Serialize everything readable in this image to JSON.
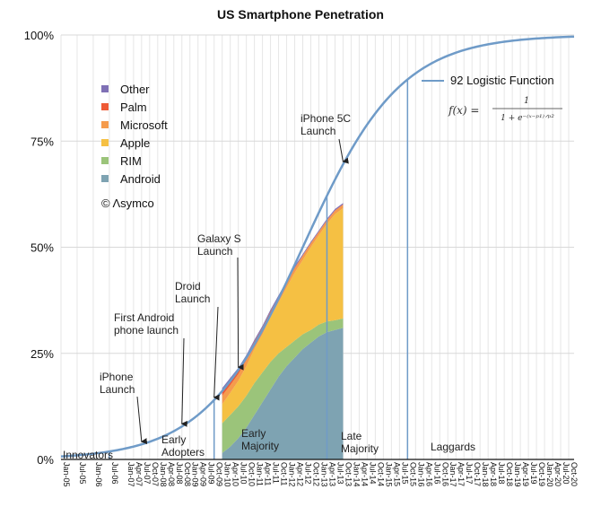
{
  "chart_data": {
    "type": "area",
    "title": "US Smartphone Penetration",
    "xlabel": "",
    "ylabel": "",
    "ylim": [
      0,
      100
    ],
    "y_ticks": [
      "0%",
      "25%",
      "50%",
      "75%",
      "100%"
    ],
    "x_ticks": [
      "Jan-05",
      "Jul-05",
      "Jan-06",
      "Jul-06",
      "Jan-07",
      "Apr-07",
      "Jul-07",
      "Oct-07",
      "Jan-08",
      "Apr-08",
      "Jul-08",
      "Oct-08",
      "Jan-09",
      "Apr-09",
      "Jul-09",
      "Oct-09",
      "Jan-10",
      "Apr-10",
      "Jul-10",
      "Oct-10",
      "Jan-11",
      "Apr-11",
      "Jul-11",
      "Oct-11",
      "Jan-12",
      "Apr-12",
      "Jul-12",
      "Oct-12",
      "Jan-13",
      "Apr-13",
      "Jul-13",
      "Oct-13",
      "Jan-14",
      "Apr-14",
      "Jul-14",
      "Oct-14",
      "Jan-15",
      "Apr-15",
      "Jul-15",
      "Oct-15",
      "Jan-16",
      "Apr-16",
      "Jul-16",
      "Oct-16",
      "Jan-17",
      "Apr-17",
      "Jul-17",
      "Oct-17",
      "Jan-18",
      "Apr-18",
      "Jul-18",
      "Oct-18",
      "Jan-19",
      "Apr-19",
      "Jul-19",
      "Oct-19",
      "Jan-20",
      "Apr-20",
      "Jul-20",
      "Oct-20"
    ],
    "legend_placement": "top-left",
    "stack_order": [
      "Android",
      "RIM",
      "Apple",
      "Microsoft",
      "Palm",
      "Other"
    ],
    "series": [
      {
        "name": "Other",
        "color": "#7f70b5"
      },
      {
        "name": "Palm",
        "color": "#ee5a36"
      },
      {
        "name": "Microsoft",
        "color": "#f59b4c"
      },
      {
        "name": "Apple",
        "color": "#f5c043"
      },
      {
        "name": "RIM",
        "color": "#9bc47a"
      },
      {
        "name": "Android",
        "color": "#7ea3b2"
      }
    ],
    "stack_data": {
      "x": [
        "Jan-10",
        "Apr-10",
        "Jul-10",
        "Oct-10",
        "Jan-11",
        "Apr-11",
        "Jul-11",
        "Oct-11",
        "Jan-12",
        "Apr-12",
        "Jul-12",
        "Oct-12",
        "Jan-13",
        "Apr-13",
        "Jul-13",
        "Oct-13"
      ],
      "Android": [
        1.5,
        3.0,
        5.0,
        7.5,
        10.5,
        13.5,
        16.5,
        19.5,
        22.0,
        24.0,
        26.0,
        27.5,
        29.0,
        30.0,
        30.5,
        31.0
      ],
      "RIM": [
        7.0,
        7.5,
        7.5,
        7.5,
        7.5,
        7.0,
        6.5,
        5.5,
        4.5,
        4.0,
        3.5,
        3.0,
        2.8,
        2.5,
        2.3,
        2.2
      ],
      "Apple": [
        4.5,
        5.2,
        6.0,
        7.0,
        8.0,
        9.0,
        10.5,
        12.0,
        14.0,
        16.0,
        17.5,
        19.5,
        21.0,
        23.0,
        25.0,
        26.0
      ],
      "Microsoft": [
        2.0,
        1.8,
        1.6,
        1.4,
        1.2,
        1.1,
        1.0,
        1.0,
        1.0,
        1.0,
        1.0,
        0.9,
        0.8,
        0.8,
        0.8,
        0.8
      ],
      "Palm": [
        1.3,
        1.2,
        1.0,
        0.8,
        0.6,
        0.5,
        0.4,
        0.3,
        0.2,
        0.2,
        0.1,
        0.1,
        0.1,
        0.1,
        0.1,
        0.1
      ],
      "Other": [
        0.5,
        0.5,
        0.5,
        0.4,
        0.4,
        0.4,
        0.4,
        0.4,
        0.4,
        0.4,
        0.3,
        0.3,
        0.3,
        0.3,
        0.3,
        0.3
      ]
    },
    "logistic": {
      "label": "92 Logistic Function",
      "formula_lhs": "f(x) =",
      "formula_num": "1",
      "formula_den": "1 + e⁻⁽ˣ⁻ᵖ¹⁾ᐟᵖ²",
      "color": "#6f9bc8"
    },
    "annotations": [
      {
        "id": "iphone-launch",
        "lines": [
          "iPhone",
          "Launch"
        ],
        "at": "Jul-07"
      },
      {
        "id": "first-android",
        "lines": [
          "First Android",
          "phone launch"
        ],
        "at": "Oct-08"
      },
      {
        "id": "droid",
        "lines": [
          "Droid",
          "Launch"
        ],
        "at": "Oct-09"
      },
      {
        "id": "galaxy-s",
        "lines": [
          "Galaxy S",
          "Launch"
        ],
        "at": "Jul-10"
      },
      {
        "id": "iphone-5c",
        "lines": [
          "iPhone 5C",
          "Launch"
        ],
        "at": "Oct-13"
      }
    ],
    "phases": [
      {
        "id": "innovators",
        "lines": [
          "Innovators"
        ]
      },
      {
        "id": "early-adopters",
        "lines": [
          "Early",
          "Adopters"
        ]
      },
      {
        "id": "early-majority",
        "lines": [
          "Early",
          "Majority"
        ]
      },
      {
        "id": "late-majority",
        "lines": [
          "Late",
          "Majority"
        ]
      },
      {
        "id": "laggards",
        "lines": [
          "Laggards"
        ]
      }
    ],
    "phase_boundaries": [
      "Jul-06",
      "Oct-09",
      "Apr-13",
      "Oct-15"
    ],
    "watermark": "© Λsymco",
    "grid": {
      "horizontal": true,
      "vertical": true
    }
  }
}
